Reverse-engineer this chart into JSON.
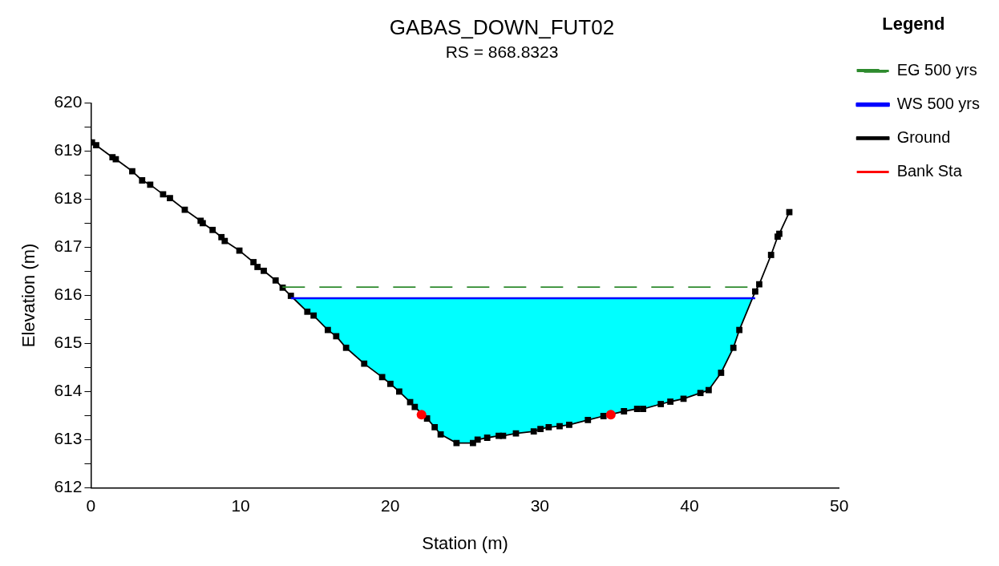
{
  "chart_data": {
    "type": "line",
    "title": "GABAS_DOWN_FUT02",
    "subtitle": "RS = 868.8323",
    "xlabel": "Station (m)",
    "ylabel": "Elevation (m)",
    "legend_title": "Legend",
    "legend": "right",
    "grid": false,
    "xlim": [
      0,
      50
    ],
    "xticks": [
      0,
      10,
      20,
      30,
      40,
      50
    ],
    "ylim": [
      612,
      620
    ],
    "yticks": [
      612,
      {
        "value": 612.5,
        "label": null
      },
      613,
      {
        "value": 613.5,
        "label": null
      },
      614,
      {
        "value": 614.5,
        "label": null
      },
      615,
      {
        "value": 615.5,
        "label": null
      },
      616,
      {
        "value": 616.5,
        "label": null
      },
      617,
      {
        "value": 617.5,
        "label": null
      },
      618,
      {
        "value": 618.5,
        "label": null
      },
      619,
      {
        "value": 619.5,
        "label": null
      },
      620
    ],
    "series": [
      {
        "name": "EG 500 yrs",
        "type": "line",
        "color": "#2e8b2e",
        "line_style": "dashed",
        "marker": "none",
        "x": [
          12.8,
          44.6
        ],
        "values": [
          616.17,
          616.17
        ]
      },
      {
        "name": "WS 500 yrs",
        "type": "area",
        "color": "#0000ff",
        "line_style": "solid",
        "marker": "none",
        "x": [
          13.36,
          44.39
        ],
        "values": [
          615.94,
          615.94
        ]
      },
      {
        "name": "Ground",
        "type": "line",
        "color": "#000000",
        "line_style": "solid",
        "marker": "square",
        "x": [
          0.07,
          0.35,
          1.44,
          1.66,
          2.76,
          3.42,
          3.96,
          4.82,
          5.28,
          6.27,
          7.33,
          7.47,
          8.13,
          8.72,
          8.94,
          9.92,
          10.86,
          11.13,
          11.55,
          12.34,
          12.81,
          13.36,
          14.46,
          14.88,
          15.83,
          16.39,
          17.05,
          18.26,
          19.46,
          20.01,
          20.6,
          21.33,
          21.64,
          22.46,
          22.97,
          23.37,
          24.43,
          25.53,
          25.84,
          26.48,
          27.25,
          27.54,
          28.4,
          29.59,
          30.04,
          30.59,
          31.32,
          31.96,
          33.21,
          34.25,
          35.62,
          36.5,
          36.9,
          38.08,
          38.72,
          39.6,
          40.73,
          41.28,
          42.11,
          42.93,
          43.33,
          44.39,
          44.66,
          45.45,
          45.89,
          46.0,
          46.67
        ],
        "values": [
          619.18,
          619.12,
          618.87,
          618.83,
          618.58,
          618.39,
          618.3,
          618.1,
          618.02,
          617.78,
          617.55,
          617.5,
          617.36,
          617.21,
          617.13,
          616.93,
          616.69,
          616.59,
          616.51,
          616.31,
          616.16,
          615.99,
          615.66,
          615.58,
          615.28,
          615.15,
          614.91,
          614.58,
          614.3,
          614.16,
          614.0,
          613.78,
          613.68,
          613.44,
          613.26,
          613.11,
          612.93,
          612.93,
          613.0,
          613.04,
          613.08,
          613.08,
          613.13,
          613.17,
          613.22,
          613.26,
          613.28,
          613.31,
          613.41,
          613.49,
          613.59,
          613.64,
          613.64,
          613.74,
          613.79,
          613.85,
          613.97,
          614.03,
          614.39,
          614.91,
          615.28,
          616.08,
          616.23,
          616.84,
          617.22,
          617.28,
          617.73
        ]
      },
      {
        "name": "Bank Sta",
        "type": "scatter",
        "color": "#ff0000",
        "marker": "circle",
        "x": [
          22.09,
          34.74
        ],
        "values": [
          613.52,
          613.52
        ]
      }
    ]
  }
}
